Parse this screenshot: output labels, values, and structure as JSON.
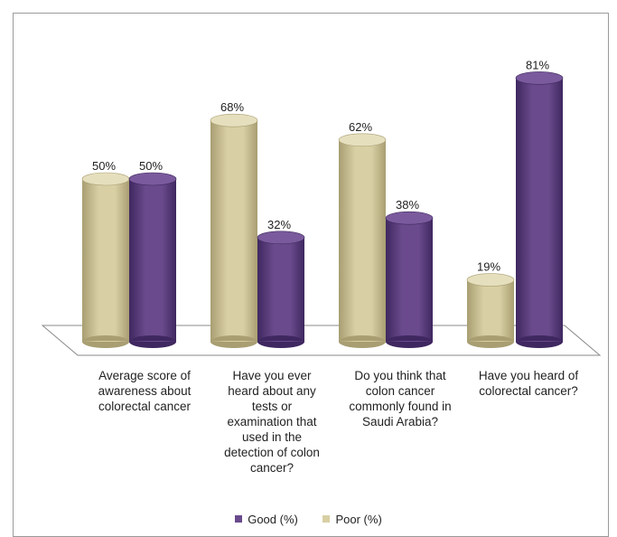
{
  "chart_data": {
    "type": "bar",
    "categories": [
      "Average score of awareness about colorectal cancer",
      "Have you ever heard about any tests or examination that used in the detection of colon cancer?",
      "Do you think that colon cancer commonly found in Saudi Arabia?",
      "Have you heard of colorectal cancer?"
    ],
    "category_lines": [
      [
        "Average score of",
        "awareness about",
        "colorectal cancer"
      ],
      [
        "Have you ever",
        "heard about any",
        "tests or",
        "examination that",
        "used in the",
        "detection of colon",
        "cancer?"
      ],
      [
        "Do you think that",
        "colon cancer",
        "commonly found in",
        "Saudi Arabia?"
      ],
      [
        "Have you heard of",
        "colorectal cancer?"
      ]
    ],
    "series": [
      {
        "name": "Poor  (%)",
        "values": [
          50,
          68,
          62,
          19
        ],
        "labels": [
          "50%",
          "68%",
          "62%",
          "19%"
        ]
      },
      {
        "name": "Good (%)",
        "values": [
          50,
          32,
          38,
          81
        ],
        "labels": [
          "50%",
          "32%",
          "38%",
          "81%"
        ]
      }
    ],
    "legend": [
      {
        "label": "Good (%)",
        "series": 1
      },
      {
        "label": "Poor  (%)",
        "series": 0
      }
    ],
    "ylim": [
      0,
      100
    ],
    "grid": false,
    "legend_position": "bottom",
    "style": "3d-cylinder",
    "colors": {
      "poor": "#d8cfa4",
      "poor_dark": "#a89e72",
      "poor_top": "#e6dfbe",
      "good": "#6a4a8c",
      "good_dark": "#3f2860",
      "good_top": "#7a5a9c",
      "floor": "#ffffff",
      "floor_stroke": "#8a8a8a"
    }
  }
}
